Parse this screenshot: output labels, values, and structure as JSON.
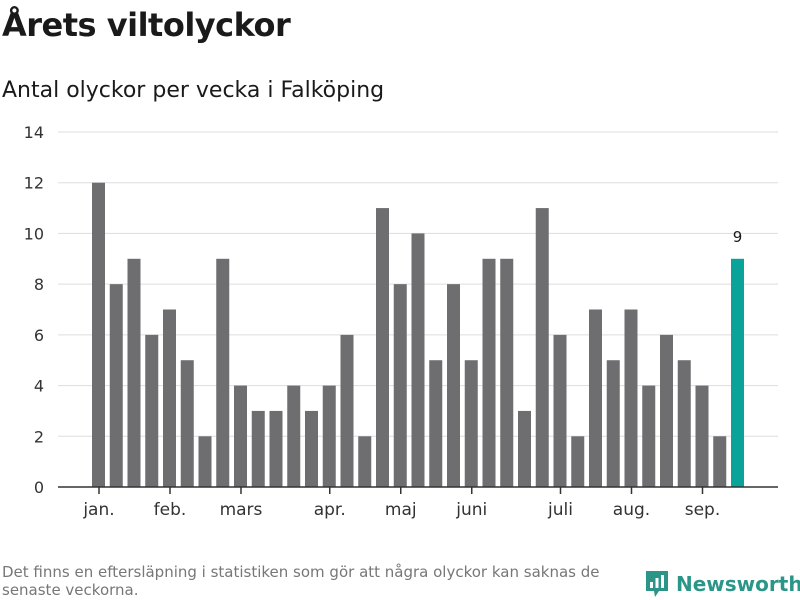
{
  "header": {
    "title": "Årets viltolyckor",
    "subtitle": "Antal olyckor per vecka i Falköping"
  },
  "footer": {
    "note": "Det finns en eftersläpning i statistiken som gör att några olyckor kan saknas de senaste veckorna.",
    "brand": "Newsworthy"
  },
  "colors": {
    "bar": "#6e6d70",
    "highlight": "#0aa39a",
    "grid": "#dddddd",
    "axis": "#333333",
    "brand": "#2b9688"
  },
  "icons": {
    "brand": "newsworthy-logo-icon"
  },
  "chart_data": {
    "type": "bar",
    "title": "Antal olyckor per vecka i Falköping",
    "xlabel": "",
    "ylabel": "",
    "ylim": [
      0,
      14
    ],
    "yticks": [
      0,
      2,
      4,
      6,
      8,
      10,
      12,
      14
    ],
    "grid": true,
    "values": [
      12,
      8,
      9,
      6,
      7,
      5,
      2,
      9,
      4,
      3,
      3,
      4,
      3,
      4,
      6,
      2,
      11,
      8,
      10,
      5,
      8,
      5,
      9,
      9,
      3,
      11,
      6,
      2,
      7,
      5,
      7,
      4,
      6,
      5,
      4,
      2,
      9
    ],
    "highlight_index": 36,
    "data_labels": [
      {
        "index": 36,
        "label": "9"
      }
    ],
    "month_labels": [
      {
        "label": "jan.",
        "bar_index": 0.5
      },
      {
        "label": "feb.",
        "bar_index": 4.5
      },
      {
        "label": "mars",
        "bar_index": 8.5
      },
      {
        "label": "apr.",
        "bar_index": 13.5
      },
      {
        "label": "maj",
        "bar_index": 17.5
      },
      {
        "label": "juni",
        "bar_index": 21.5
      },
      {
        "label": "juli",
        "bar_index": 26.5
      },
      {
        "label": "aug.",
        "bar_index": 30.5
      },
      {
        "label": "sep.",
        "bar_index": 34.5
      }
    ]
  }
}
